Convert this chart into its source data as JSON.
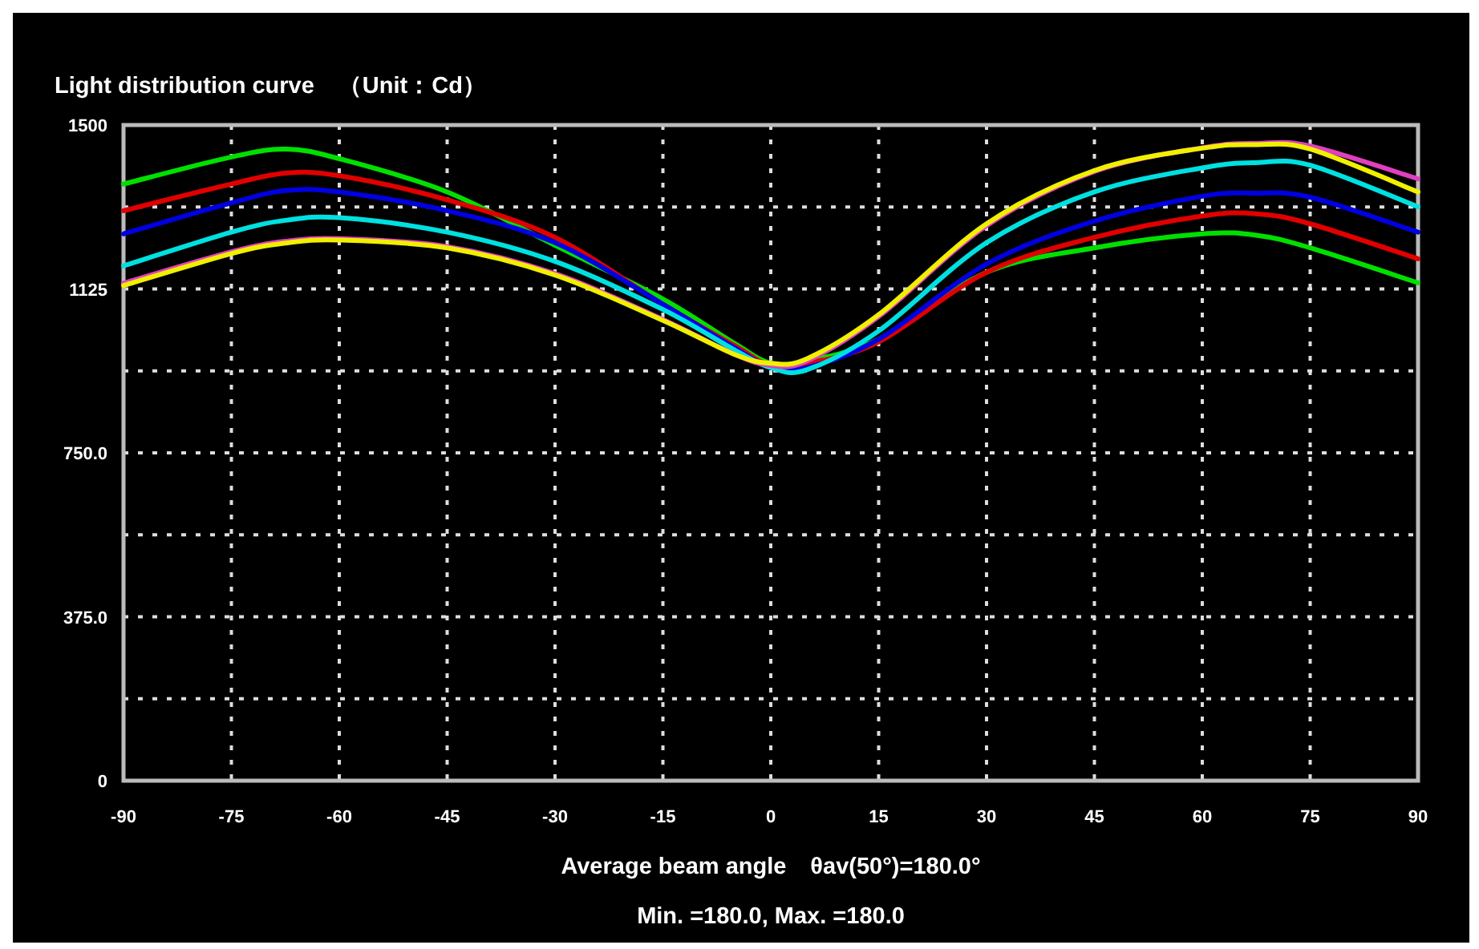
{
  "chart_data": {
    "type": "line",
    "title": "Light distribution curve　（Unit：Cd）",
    "xlabel": "Average beam angle　θav(50°)=180.0°",
    "annotations": [
      "Min. =180.0,   Max. =180.0"
    ],
    "x": [
      -90,
      -75,
      -67.5,
      -60,
      -45,
      -30,
      -15,
      -5,
      0,
      5,
      15,
      30,
      45,
      60,
      67.5,
      75,
      90
    ],
    "xlim": [
      -90,
      90
    ],
    "xticks": [
      -90,
      -75,
      -60,
      -45,
      -30,
      -15,
      0,
      15,
      30,
      45,
      60,
      75,
      90
    ],
    "ylim": [
      0,
      1500
    ],
    "yticks": [
      0,
      {
        "value": 187.5,
        "label": null
      },
      {
        "value": 375,
        "label": "375.0"
      },
      {
        "value": 562.5,
        "label": null
      },
      {
        "value": 750,
        "label": "750.0"
      },
      {
        "value": 937.5,
        "label": null
      },
      1125,
      {
        "value": 1312.5,
        "label": null
      },
      1500
    ],
    "grid": true,
    "marker": "none",
    "line_style": "solid",
    "series": [
      {
        "color": "#00e000",
        "values": [
          1365,
          1427,
          1445,
          1423,
          1347,
          1225,
          1102,
          1000,
          955,
          960,
          1010,
          1163,
          1219,
          1251,
          1248,
          1219,
          1139
        ]
      },
      {
        "color": "#e00000",
        "values": [
          1304,
          1365,
          1390,
          1384,
          1329,
          1243,
          1090,
          995,
          950,
          955,
          1004,
          1163,
          1243,
          1292,
          1297,
          1274,
          1194
        ]
      },
      {
        "color": "#0000e0",
        "values": [
          1251,
          1322,
          1350,
          1347,
          1304,
          1231,
          1090,
          990,
          945,
          945,
          1010,
          1182,
          1280,
          1337,
          1344,
          1335,
          1255
        ]
      },
      {
        "color": "#00e0e0",
        "values": [
          1178,
          1255,
          1282,
          1288,
          1255,
          1188,
          1078,
          985,
          945,
          940,
          1029,
          1231,
          1347,
          1402,
          1414,
          1408,
          1313
        ]
      },
      {
        "color": "#e040c0",
        "values": [
          1138,
          1210,
          1234,
          1240,
          1222,
          1160,
          1055,
          975,
          950,
          960,
          1062,
          1270,
          1394,
          1448,
          1458,
          1452,
          1377
        ]
      },
      {
        "color": "#f0f000",
        "values": [
          1133,
          1206,
          1230,
          1237,
          1219,
          1157,
          1053,
          975,
          955,
          965,
          1066,
          1274,
          1396,
          1447,
          1455,
          1445,
          1347
        ]
      }
    ]
  }
}
